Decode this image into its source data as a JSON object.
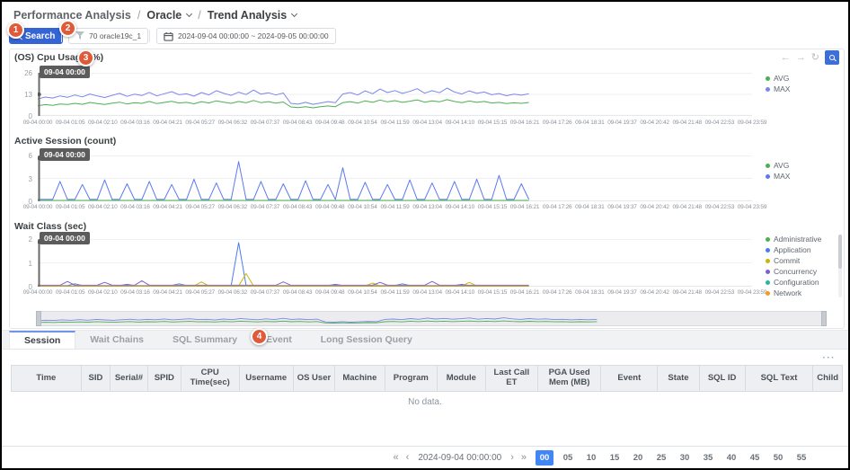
{
  "app": {
    "breadcrumb": [
      {
        "label": "Performance Analysis",
        "caret": false
      },
      {
        "label": "Oracle",
        "caret": true
      },
      {
        "label": "Trend Analysis",
        "caret": true
      }
    ],
    "breadcrumb_separator": "/"
  },
  "annotations": {
    "badges": [
      "1",
      "2",
      "3",
      "4"
    ]
  },
  "toolbar": {
    "search_label": "Search",
    "instance_label": "70 oracle19c_1",
    "date_range": "2024-09-04 00:00:00 ~ 2024-09-05 00:00:00"
  },
  "chart_toolbar": {
    "icons": [
      {
        "name": "pan-left-icon",
        "glyph": "←"
      },
      {
        "name": "pan-right-icon",
        "glyph": "→"
      },
      {
        "name": "refresh-icon",
        "glyph": "↻"
      }
    ],
    "zoom_active": true
  },
  "marker_label": "09-04 00:00",
  "x_axis": {
    "labels": [
      "09-04 00:00",
      "09-04 01:05",
      "09-04 02:10",
      "09-04 03:16",
      "09-04 04:21",
      "09-04 05:27",
      "09-04 06:32",
      "09-04 07:37",
      "09-04 08:43",
      "09-04 09:48",
      "09-04 10:54",
      "09-04 11:59",
      "09-04 13:04",
      "09-04 14:10",
      "09-04 15:15",
      "09-04 16:21",
      "09-04 17:26",
      "09-04 18:31",
      "09-04 19:37",
      "09-04 20:42",
      "09-04 21:48",
      "09-04 22:53",
      "09-04 23:59"
    ],
    "data_fraction": 0.6875
  },
  "chart_data": [
    {
      "type": "line",
      "title": "(OS) Cpu Usage (%)",
      "ylim": [
        0,
        26
      ],
      "yticks": [
        0,
        13,
        26
      ],
      "grid": true,
      "legend_position": "right",
      "series": [
        {
          "name": "AVG",
          "color": "#4CAF50",
          "values": [
            6.1,
            6.8,
            6.4,
            7.2,
            6.9,
            7.6,
            7.0,
            8.1,
            7.4,
            6.9,
            7.7,
            8.3,
            7.2,
            8.0,
            7.6,
            8.7,
            7.4,
            8.1,
            8.8,
            7.8,
            8.2,
            7.3,
            8.6,
            7.8,
            9.1,
            8.3,
            7.6,
            8.7,
            7.9,
            9.3,
            8.0,
            8.6,
            7.7,
            8.4,
            5.4,
            5.0,
            5.6,
            4.9,
            5.5,
            6.0,
            5.6,
            8.0,
            8.6,
            7.7,
            9.1,
            8.2,
            9.6,
            8.5,
            9.2,
            8.2,
            8.9,
            9.7,
            8.3,
            9.1,
            8.5,
            9.8,
            8.7,
            8.0,
            9.0,
            8.2,
            8.7,
            7.8,
            8.2,
            7.4,
            7.9,
            7.6,
            8.1
          ]
        },
        {
          "name": "MAX",
          "color": "#7B85EC",
          "values": [
            10.2,
            11.4,
            10.8,
            12.1,
            11.2,
            12.6,
            11.5,
            13.2,
            12.0,
            11.1,
            12.4,
            13.6,
            11.8,
            13.1,
            12.3,
            14.2,
            12.1,
            13.4,
            14.6,
            12.8,
            13.3,
            11.9,
            14.1,
            12.7,
            15.2,
            13.6,
            12.4,
            14.3,
            12.9,
            15.6,
            13.1,
            14.0,
            12.6,
            13.8,
            7.6,
            7.1,
            8.2,
            7.0,
            7.8,
            8.6,
            8.0,
            13.2,
            14.1,
            12.6,
            15.1,
            13.4,
            16.2,
            14.1,
            15.3,
            13.6,
            14.8,
            16.4,
            13.7,
            15.2,
            14.0,
            16.8,
            14.4,
            13.2,
            15.1,
            13.6,
            14.4,
            12.8,
            13.5,
            12.2,
            13.1,
            12.5,
            13.3
          ]
        }
      ]
    },
    {
      "type": "line",
      "title": "Active Session (count)",
      "ylim": [
        0,
        6
      ],
      "yticks": [
        0,
        3,
        6
      ],
      "grid": true,
      "legend_position": "right",
      "series": [
        {
          "name": "AVG",
          "color": "#4CAF50",
          "const": 0.12
        },
        {
          "name": "MAX",
          "color": "#5B79F0",
          "values": [
            0.25,
            0.25,
            0.25,
            2.6,
            0.25,
            0.25,
            2.2,
            0.25,
            0.25,
            2.8,
            0.25,
            0.25,
            2.3,
            0.25,
            0.25,
            2.6,
            0.25,
            0.25,
            2.2,
            0.25,
            0.25,
            2.9,
            0.25,
            0.25,
            2.4,
            0.25,
            0.25,
            5.2,
            0.25,
            0.25,
            2.6,
            0.25,
            0.25,
            2.3,
            0.25,
            0.25,
            2.7,
            0.25,
            0.25,
            2.2,
            0.25,
            4.4,
            0.25,
            0.25,
            2.5,
            0.25,
            0.25,
            2.2,
            0.25,
            0.25,
            2.8,
            0.25,
            0.25,
            2.4,
            0.25,
            0.25,
            2.6,
            0.25,
            0.25,
            2.9,
            0.25,
            0.25,
            3.4,
            0.25,
            0.25,
            2.3,
            0.25
          ]
        }
      ]
    },
    {
      "type": "line",
      "title": "Wait Class (sec)",
      "ylim": [
        0,
        2
      ],
      "yticks": [
        0,
        1,
        2
      ],
      "grid": true,
      "legend_position": "right",
      "legend_scrollbar": true,
      "series": [
        {
          "name": "Administrative",
          "color": "#4CAF50",
          "const": 0.02
        },
        {
          "name": "Application",
          "color": "#4A7CF0",
          "values": [
            0.05,
            0.05,
            0.05,
            0.05,
            0.05,
            0.12,
            0.05,
            0.05,
            0.05,
            0.05,
            0.05,
            0.05,
            0.1,
            0.05,
            0.05,
            0.05,
            0.05,
            0.05,
            0.05,
            0.12,
            0.05,
            0.05,
            0.05,
            0.05,
            0.05,
            0.05,
            0.05,
            1.85,
            0.05,
            0.05,
            0.05,
            0.05,
            0.05,
            0.05,
            0.05,
            0.05,
            0.05,
            0.05,
            0.05,
            0.05,
            0.1,
            0.05,
            0.05,
            0.05,
            0.05,
            0.05,
            0.05,
            0.05,
            0.05,
            0.12,
            0.05,
            0.05,
            0.05,
            0.05,
            0.05,
            0.05,
            0.05,
            0.1,
            0.05,
            0.05,
            0.05,
            0.05,
            0.05,
            0.05,
            0.05,
            0.05,
            0.05
          ]
        },
        {
          "name": "Commit",
          "color": "#C9B50B",
          "values": [
            0.03,
            0.03,
            0.03,
            0.03,
            0.03,
            0.03,
            0.03,
            0.03,
            0.03,
            0.03,
            0.03,
            0.03,
            0.03,
            0.03,
            0.03,
            0.03,
            0.03,
            0.03,
            0.03,
            0.03,
            0.03,
            0.03,
            0.2,
            0.03,
            0.03,
            0.03,
            0.03,
            0.03,
            0.55,
            0.03,
            0.03,
            0.03,
            0.03,
            0.03,
            0.03,
            0.03,
            0.03,
            0.03,
            0.03,
            0.03,
            0.03,
            0.03,
            0.03,
            0.03,
            0.03,
            0.15,
            0.03,
            0.03,
            0.03,
            0.03,
            0.03,
            0.03,
            0.03,
            0.03,
            0.03,
            0.03,
            0.03,
            0.03,
            0.18,
            0.03,
            0.03,
            0.03,
            0.03,
            0.03,
            0.03,
            0.03,
            0.03
          ]
        },
        {
          "name": "Concurrency",
          "color": "#7D5FD3",
          "values": [
            0.06,
            0.06,
            0.06,
            0.06,
            0.22,
            0.06,
            0.06,
            0.06,
            0.06,
            0.18,
            0.06,
            0.06,
            0.06,
            0.06,
            0.25,
            0.06,
            0.06,
            0.06,
            0.06,
            0.06,
            0.06,
            0.06,
            0.06,
            0.06,
            0.06,
            0.06,
            0.06,
            0.06,
            0.06,
            0.06,
            0.06,
            0.06,
            0.06,
            0.2,
            0.06,
            0.06,
            0.06,
            0.06,
            0.06,
            0.06,
            0.06,
            0.06,
            0.06,
            0.06,
            0.06,
            0.06,
            0.18,
            0.06,
            0.06,
            0.06,
            0.06,
            0.06,
            0.06,
            0.22,
            0.06,
            0.06,
            0.06,
            0.06,
            0.06,
            0.06,
            0.06,
            0.06,
            0.06,
            0.06,
            0.06,
            0.06,
            0.06
          ]
        },
        {
          "name": "Configuration",
          "color": "#2BB5A0",
          "const": 0.02
        },
        {
          "name": "Network",
          "color": "#F59A23",
          "const": 0.035
        }
      ]
    },
    {
      "type": "line",
      "role": "overview",
      "title": "overview",
      "ylim": [
        0,
        30
      ],
      "series_from": 0,
      "data_fraction": 0.71
    }
  ],
  "tabs": {
    "items": [
      {
        "label": "Session",
        "active": true
      },
      {
        "label": "Wait Chains",
        "active": false
      },
      {
        "label": "SQL Summary",
        "active": false
      },
      {
        "label": "Event",
        "active": false
      },
      {
        "label": "Long Session Query",
        "active": false
      }
    ]
  },
  "table": {
    "menu_icon": "···",
    "columns": [
      "Time",
      "SID",
      "Serial#",
      "SPID",
      "CPU Time(sec)",
      "Username",
      "OS User",
      "Machine",
      "Program",
      "Module",
      "Last Call ET",
      "PGA Used Mem (MB)",
      "Event",
      "State",
      "SQL ID",
      "SQL Text",
      "Child"
    ],
    "empty_text": "No data."
  },
  "pagination": {
    "first": "«",
    "prev": "‹",
    "next": "›",
    "last": "»",
    "date": "2024-09-04 00:00:00",
    "minutes": [
      "00",
      "05",
      "10",
      "15",
      "20",
      "25",
      "30",
      "35",
      "40",
      "45",
      "50",
      "55"
    ],
    "active_minute": "00"
  },
  "colors": {
    "accent": "#3565D5",
    "badge": "#E05A3A",
    "avg": "#4CAF50",
    "max": "#7B85EC",
    "pagination_active": "#4285F4"
  }
}
